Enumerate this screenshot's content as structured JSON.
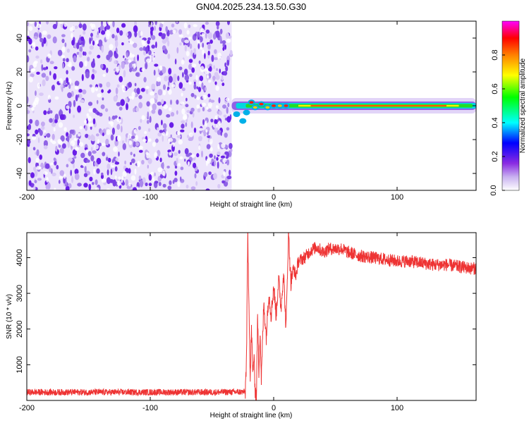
{
  "title": "GN04.2025.234.13.50.G30",
  "chart_data": [
    {
      "type": "heatmap",
      "title": "GN04.2025.234.13.50.G30",
      "xlabel": "Height of straight line (km)",
      "ylabel": "Frequency (Hz)",
      "xlim": [
        -200,
        164
      ],
      "ylim": [
        -50,
        50
      ],
      "xticks": [
        -200,
        -100,
        0,
        100
      ],
      "yticks": [
        -40,
        -20,
        0,
        20,
        40
      ],
      "noise_region_x": [
        -200,
        -34
      ],
      "signal_region_x": [
        -34,
        164
      ],
      "signal_center_freq": 0,
      "colorbar": {
        "label": "Normalized spectral amplitude",
        "range": [
          0,
          1
        ],
        "ticks": [
          "0.0",
          "0.2",
          "0.4",
          "0.6",
          "0.8"
        ],
        "colors": [
          "#ffffff",
          "#8a2be2",
          "#0000ff",
          "#00ffff",
          "#00ff00",
          "#ffff00",
          "#ff8000",
          "#ff0000",
          "#ff00ff"
        ]
      }
    },
    {
      "type": "line",
      "xlabel": "Height of straight line (km)",
      "ylabel": "SNR (10 * v/v)",
      "xlim": [
        -200,
        164
      ],
      "ylim": [
        0,
        4700
      ],
      "xticks": [
        -200,
        -100,
        0,
        100
      ],
      "yticks": [
        1000,
        2000,
        3000,
        4000
      ],
      "color": "#ee3333",
      "series": [
        {
          "x": [
            -200,
            -150,
            -100,
            -50,
            -23,
            -22,
            -21,
            -20,
            -19,
            -18,
            -17,
            -16,
            -15,
            -14,
            -13,
            -12,
            -11,
            -10,
            -8,
            -6,
            -4,
            -2,
            0,
            2,
            4,
            6,
            8,
            10,
            12,
            14,
            16,
            18,
            20,
            25,
            30,
            35,
            40,
            45,
            50,
            55,
            60,
            70,
            80,
            90,
            100,
            110,
            120,
            130,
            140,
            150,
            160,
            164
          ],
          "y": [
            230,
            230,
            230,
            230,
            240,
            1200,
            4700,
            2800,
            500,
            2000,
            800,
            1200,
            300,
            100,
            2400,
            800,
            2000,
            600,
            2700,
            1800,
            3000,
            2400,
            3200,
            2400,
            3400,
            2600,
            3600,
            2000,
            4700,
            3300,
            3700,
            3500,
            3900,
            4000,
            4200,
            4300,
            4150,
            4250,
            4250,
            4250,
            4150,
            4050,
            4000,
            3950,
            3900,
            3900,
            3850,
            3800,
            3800,
            3750,
            3700,
            3700
          ]
        }
      ]
    }
  ]
}
